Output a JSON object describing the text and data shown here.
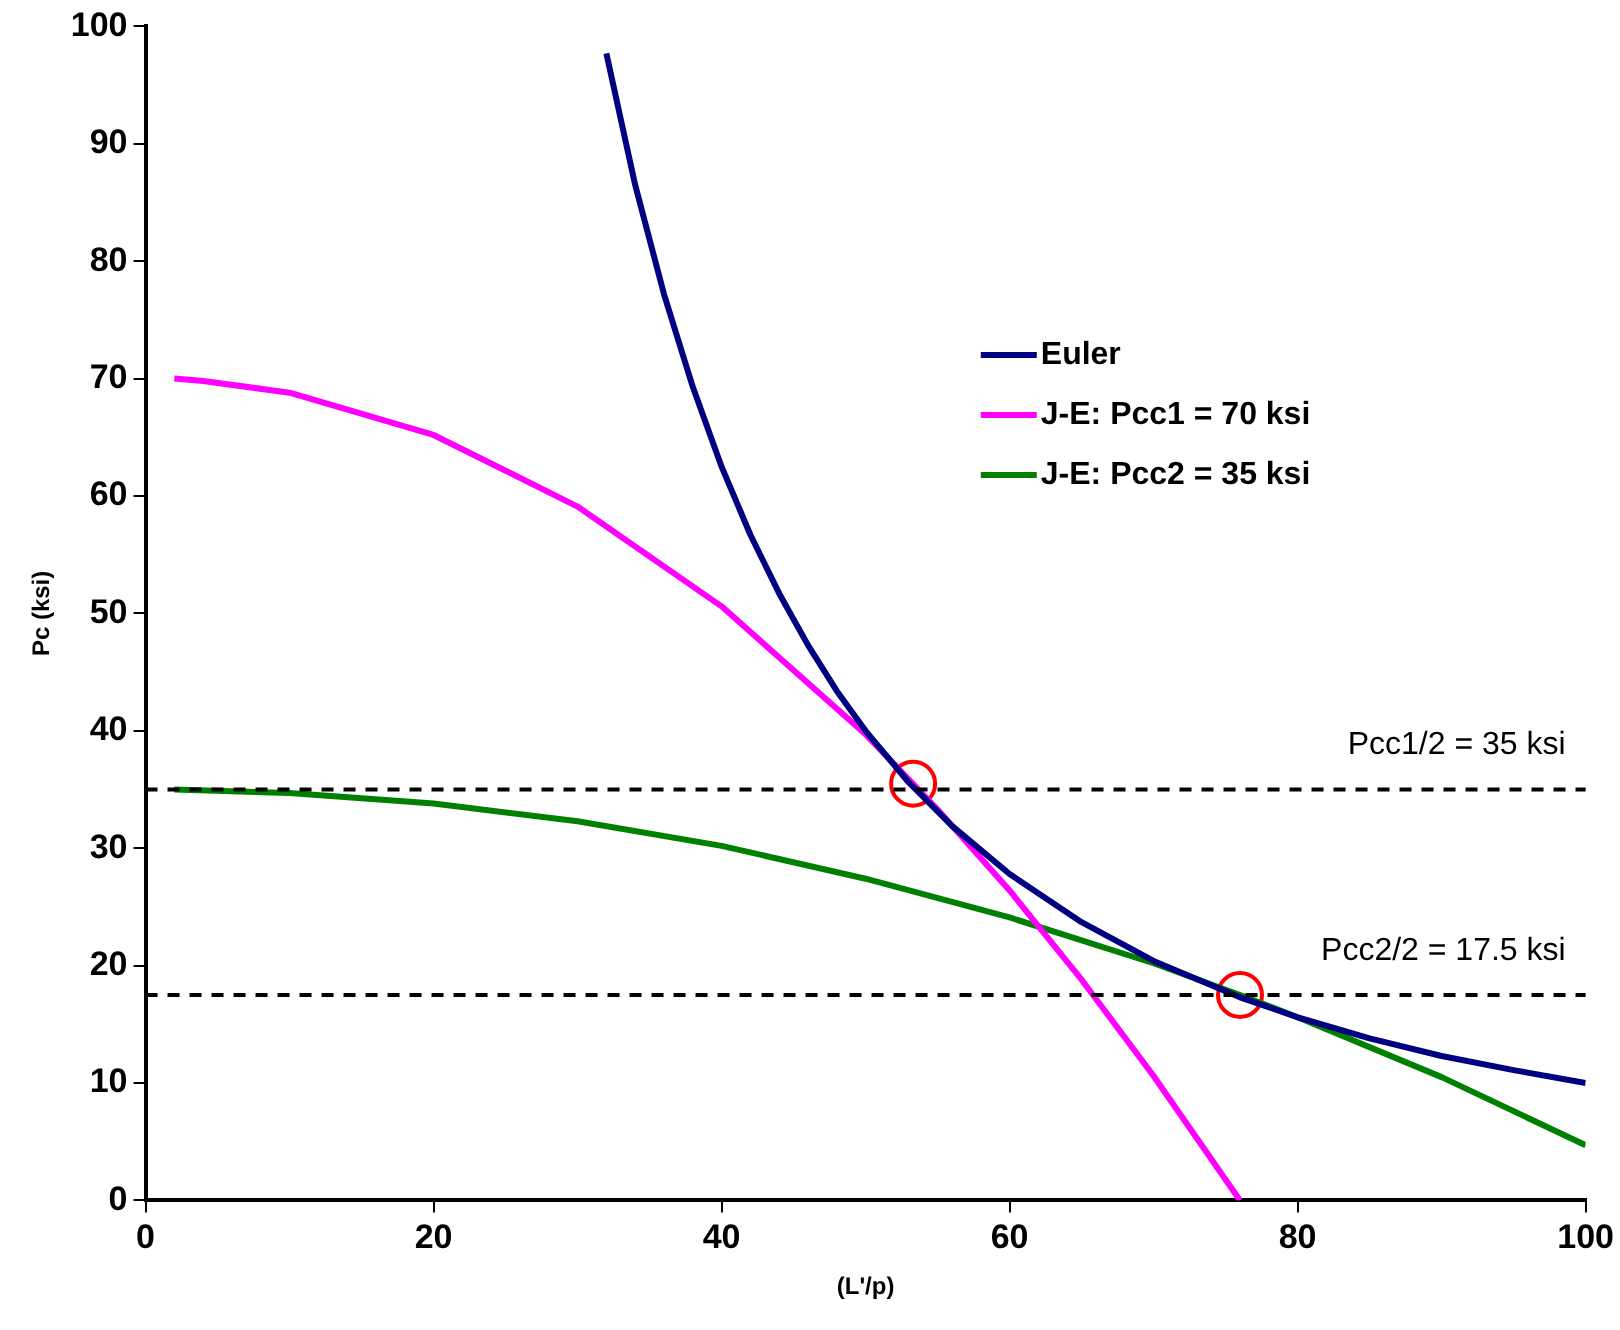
{
  "chart_data": {
    "type": "line",
    "xlabel": "(L'/p)",
    "ylabel": "Pc (ksi)",
    "xlim": [
      0,
      100
    ],
    "xticks": [
      0,
      20,
      40,
      60,
      80,
      100
    ],
    "ylim": [
      0,
      100
    ],
    "yticks": [
      0,
      10,
      20,
      30,
      40,
      50,
      60,
      70,
      80,
      90,
      100
    ],
    "grid": false,
    "legend": "top right",
    "marker": "none",
    "line_style": "solid",
    "series": [
      {
        "name": "Euler",
        "color": "#000080",
        "x": [
          32,
          34,
          36,
          38,
          40,
          42,
          44,
          46,
          48,
          50,
          53,
          56,
          60,
          65,
          70,
          76,
          80,
          85,
          90,
          95,
          100
        ],
        "values": [
          97.7,
          86.5,
          77.2,
          69.3,
          62.5,
          56.7,
          51.7,
          47.3,
          43.4,
          40,
          35.6,
          31.9,
          27.8,
          23.7,
          20.4,
          17.3,
          15.6,
          13.8,
          12.3,
          11.1,
          10
        ]
      },
      {
        "name": "J-E: Pcc1 = 70 ksi",
        "color": "#ff00ff",
        "x": [
          2,
          4,
          10,
          20,
          30,
          40,
          50,
          55,
          60,
          65,
          70,
          76
        ],
        "values": [
          70,
          69.8,
          68.8,
          65.2,
          59.1,
          50.6,
          39.7,
          33.3,
          26.4,
          18.8,
          10.6,
          0
        ]
      },
      {
        "name": "J-E: Pcc2 = 35 ksi",
        "color": "#008000",
        "x": [
          2,
          10,
          20,
          30,
          40,
          50,
          60,
          70,
          76,
          80,
          90,
          100
        ],
        "values": [
          35,
          34.7,
          33.8,
          32.3,
          30.2,
          27.4,
          24.1,
          20.2,
          17.5,
          15.6,
          10.5,
          4.7
        ]
      },
      {
        "type": "scatter",
        "marker": "circle",
        "color": "#ff0000",
        "x": [
          53.3,
          76
        ],
        "values": [
          35.5,
          17.5
        ]
      }
    ],
    "ref_lines": [
      {
        "axis": "y",
        "value": 35,
        "label": "Pcc1/2 = 35 ksi",
        "color": "#000000",
        "line_style": "dashed"
      },
      {
        "axis": "y",
        "value": 17.5,
        "label": "Pcc2/2 = 17.5 ksi",
        "color": "#000000",
        "line_style": "dashed"
      }
    ]
  }
}
